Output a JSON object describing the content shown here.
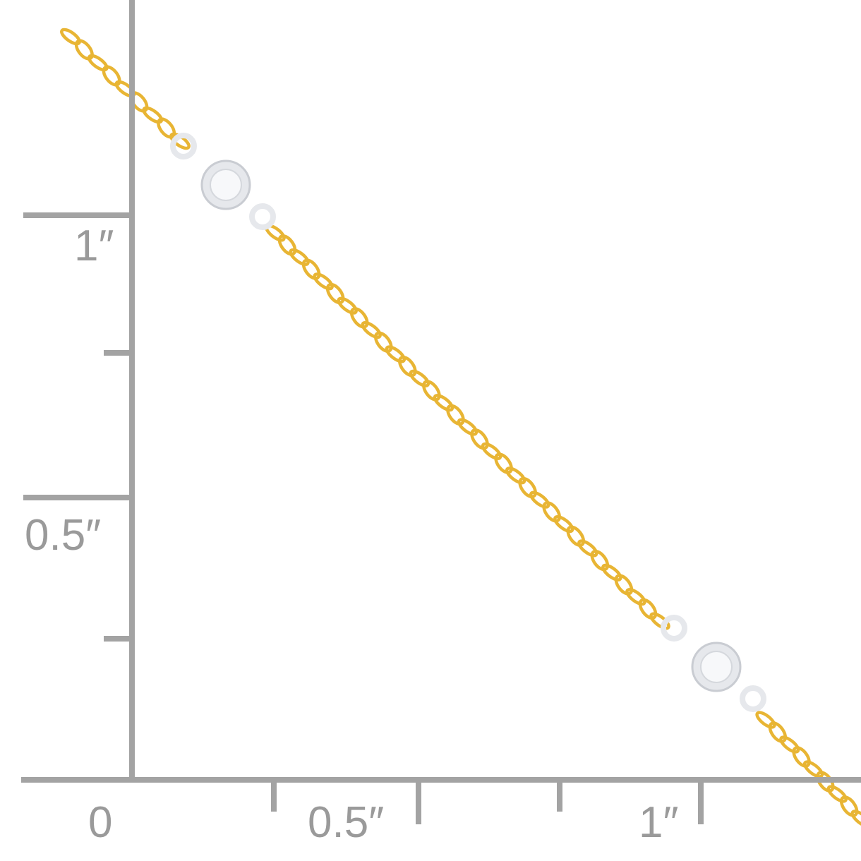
{
  "ruler": {
    "color": "#a3a3a3",
    "vertical_labels": [
      "1″",
      "0.5″"
    ],
    "horizontal_labels": [
      "0",
      "0.5″",
      "1″"
    ]
  },
  "product": {
    "chain_color": "#e8b534",
    "stone_setting_color": "#e6e8ec",
    "stone_count": 2
  }
}
